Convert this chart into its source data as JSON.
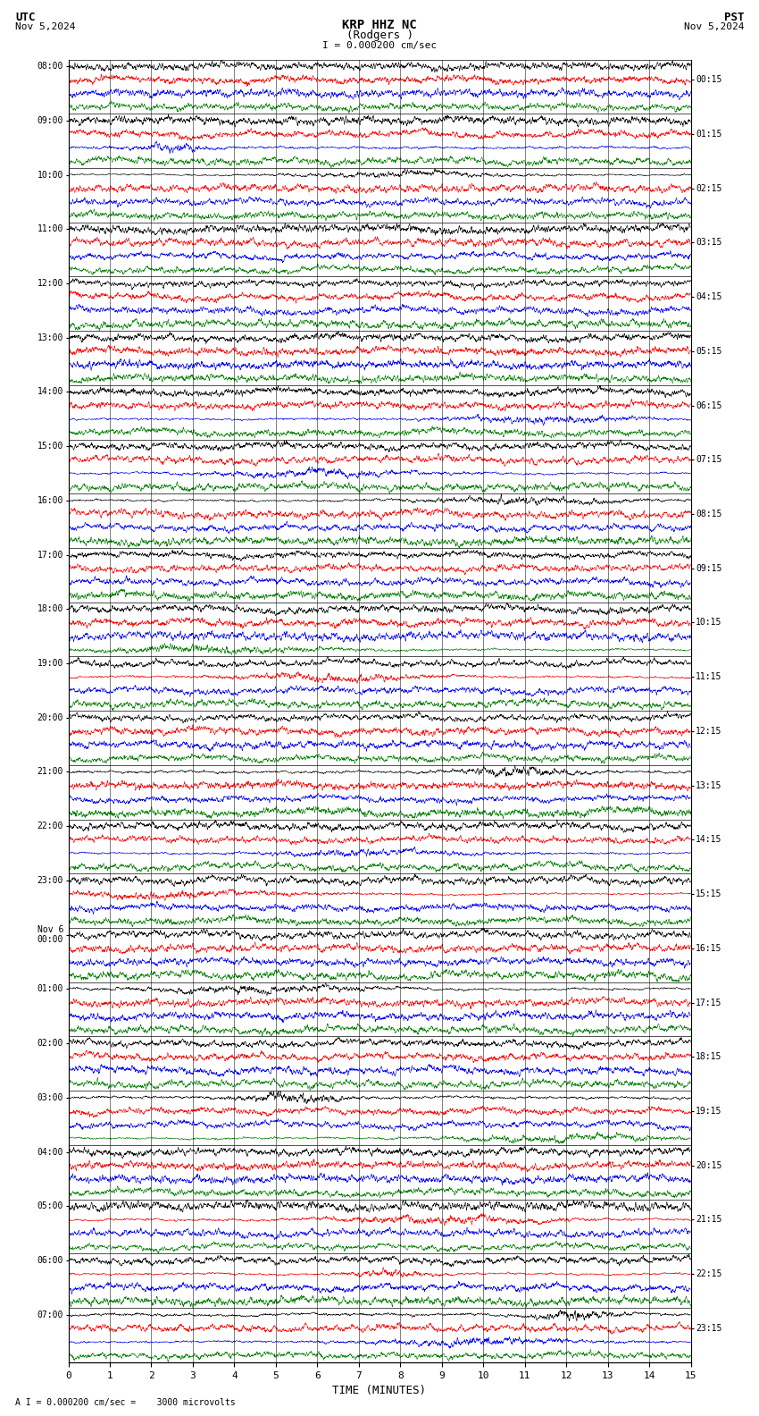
{
  "title_center": "KRP HHZ NC",
  "subtitle_center": "(Rodgers )",
  "scale_label": "I = 0.000200 cm/sec",
  "title_left": "UTC",
  "date_left": "Nov 5,2024",
  "title_right": "PST",
  "date_right": "Nov 5,2024",
  "xlabel": "TIME (MINUTES)",
  "footer": "A I = 0.000200 cm/sec =    3000 microvolts",
  "x_min": 0,
  "x_max": 15,
  "x_ticks": [
    0,
    1,
    2,
    3,
    4,
    5,
    6,
    7,
    8,
    9,
    10,
    11,
    12,
    13,
    14,
    15
  ],
  "bg_color": "white",
  "trace_colors": [
    "black",
    "red",
    "blue",
    "green"
  ],
  "utc_hour_labels": [
    "08:00",
    "09:00",
    "10:00",
    "11:00",
    "12:00",
    "13:00",
    "14:00",
    "15:00",
    "16:00",
    "17:00",
    "18:00",
    "19:00",
    "20:00",
    "21:00",
    "22:00",
    "23:00",
    "Nov 6\n00:00",
    "01:00",
    "02:00",
    "03:00",
    "04:00",
    "05:00",
    "06:00",
    "07:00"
  ],
  "pst_labels": [
    "00:15",
    "01:15",
    "02:15",
    "03:15",
    "04:15",
    "05:15",
    "06:15",
    "07:15",
    "08:15",
    "09:15",
    "10:15",
    "11:15",
    "12:15",
    "13:15",
    "14:15",
    "15:15",
    "16:15",
    "17:15",
    "18:15",
    "19:15",
    "20:15",
    "21:15",
    "22:15",
    "23:15"
  ],
  "n_hours": 24,
  "traces_per_hour": 4,
  "noise_seed": 42,
  "n_points": 3000,
  "amplitude": 0.48,
  "linewidth": 0.4
}
